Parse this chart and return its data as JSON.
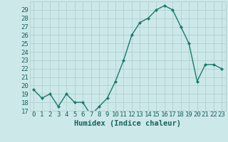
{
  "x": [
    0,
    1,
    2,
    3,
    4,
    5,
    6,
    7,
    8,
    9,
    10,
    11,
    12,
    13,
    14,
    15,
    16,
    17,
    18,
    19,
    20,
    21,
    22,
    23
  ],
  "y": [
    19.5,
    18.5,
    19,
    17.5,
    19,
    18,
    18,
    16.5,
    17.5,
    18.5,
    20.5,
    23,
    26,
    27.5,
    28,
    29,
    29.5,
    29,
    27,
    25,
    20.5,
    22.5,
    22.5,
    22
  ],
  "xlabel": "Humidex (Indice chaleur)",
  "ylim": [
    17,
    30
  ],
  "xlim": [
    -0.5,
    23.5
  ],
  "yticks": [
    17,
    18,
    19,
    20,
    21,
    22,
    23,
    24,
    25,
    26,
    27,
    28,
    29
  ],
  "xticks": [
    0,
    1,
    2,
    3,
    4,
    5,
    6,
    7,
    8,
    9,
    10,
    11,
    12,
    13,
    14,
    15,
    16,
    17,
    18,
    19,
    20,
    21,
    22,
    23
  ],
  "line_color": "#1a7a6e",
  "marker_color": "#1a7a6e",
  "bg_color": "#cce8e8",
  "grid_color": "#aacccc",
  "tick_label_color": "#1a6060",
  "axis_label_color": "#1a6060",
  "font_size": 6.5,
  "xlabel_fontsize": 7.5
}
